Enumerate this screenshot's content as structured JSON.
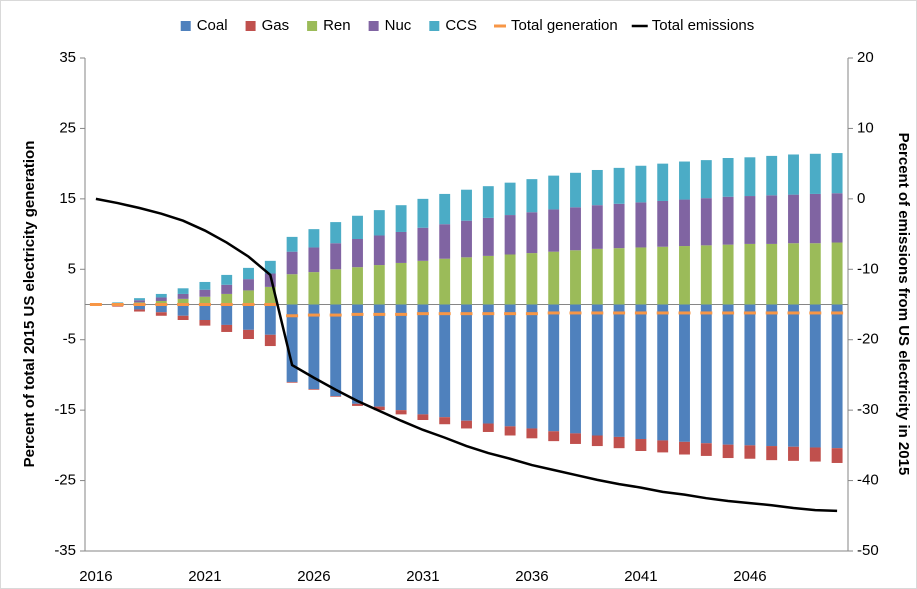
{
  "chart_data": {
    "type": "bar",
    "legend": "top",
    "y_label": "Percent of total 2015 US electricity generation",
    "y2_label": "Percent of emissions from US electricity in 2015",
    "categories": [
      "2016",
      null,
      null,
      null,
      null,
      "2021",
      null,
      null,
      null,
      null,
      "2026",
      null,
      null,
      null,
      null,
      "2031",
      null,
      null,
      null,
      null,
      "2036",
      null,
      null,
      null,
      null,
      "2041",
      null,
      null,
      null,
      null,
      "2046",
      null,
      null,
      null,
      null
    ],
    "ylim": [
      -35,
      35
    ],
    "yticks": [
      -35,
      -25,
      -15,
      -5,
      5,
      15,
      25,
      35
    ],
    "y2lim": [
      -50,
      20
    ],
    "y2ticks": [
      -50,
      -40,
      -30,
      -20,
      -10,
      0,
      10,
      20
    ],
    "series": [
      {
        "name": "Coal",
        "type": "bar",
        "color": "#4f81bd",
        "values": [
          0,
          -0.2,
          -0.7,
          -1.1,
          -1.6,
          -2.2,
          -2.9,
          -3.6,
          -4.3,
          -11.0,
          -12.0,
          -13.0,
          -14.1,
          -14.5,
          -15.0,
          -15.6,
          -16.0,
          -16.5,
          -16.9,
          -17.3,
          -17.6,
          -18.0,
          -18.3,
          -18.6,
          -18.8,
          -19.1,
          -19.3,
          -19.5,
          -19.7,
          -19.9,
          -20.0,
          -20.1,
          -20.2,
          -20.3,
          -20.4
        ]
      },
      {
        "name": "Gas",
        "type": "bar",
        "color": "#c0504d",
        "values": [
          0,
          -0.1,
          -0.3,
          -0.5,
          -0.6,
          -0.8,
          -1.0,
          -1.3,
          -1.6,
          -0.1,
          -0.1,
          -0.1,
          -0.3,
          -0.5,
          -0.6,
          -0.8,
          -1.0,
          -1.1,
          -1.2,
          -1.3,
          -1.4,
          -1.4,
          -1.5,
          -1.5,
          -1.6,
          -1.7,
          -1.7,
          -1.8,
          -1.8,
          -1.9,
          -1.9,
          -2.0,
          -2.0,
          -2.0,
          -2.1
        ]
      },
      {
        "name": "Ren",
        "type": "bar",
        "color": "#9bbb59",
        "values": [
          0,
          0.1,
          0.3,
          0.5,
          0.8,
          1.1,
          1.5,
          2.0,
          2.5,
          4.3,
          4.6,
          5.0,
          5.3,
          5.6,
          5.9,
          6.2,
          6.5,
          6.7,
          6.9,
          7.1,
          7.3,
          7.5,
          7.7,
          7.9,
          8.0,
          8.1,
          8.2,
          8.3,
          8.4,
          8.5,
          8.6,
          8.6,
          8.7,
          8.7,
          8.8
        ]
      },
      {
        "name": "Nuc",
        "type": "bar",
        "color": "#8064a2",
        "values": [
          0,
          0.1,
          0.3,
          0.5,
          0.7,
          1.0,
          1.3,
          1.6,
          1.9,
          3.2,
          3.5,
          3.7,
          4.0,
          4.2,
          4.4,
          4.7,
          4.9,
          5.2,
          5.4,
          5.6,
          5.8,
          6.0,
          6.1,
          6.2,
          6.3,
          6.4,
          6.5,
          6.6,
          6.7,
          6.8,
          6.8,
          6.9,
          6.9,
          7.0,
          7.0
        ]
      },
      {
        "name": "CCS",
        "type": "bar",
        "color": "#4bacc6",
        "values": [
          0,
          0.1,
          0.3,
          0.5,
          0.8,
          1.1,
          1.4,
          1.6,
          1.8,
          2.1,
          2.6,
          3.0,
          3.3,
          3.6,
          3.8,
          4.1,
          4.3,
          4.4,
          4.5,
          4.6,
          4.7,
          4.8,
          4.9,
          5.0,
          5.1,
          5.2,
          5.3,
          5.4,
          5.4,
          5.5,
          5.5,
          5.6,
          5.7,
          5.7,
          5.7
        ]
      },
      {
        "name": "Total generation",
        "type": "dash",
        "color": "#f79646",
        "values": [
          0,
          0,
          0,
          0,
          0,
          0,
          0,
          0,
          0,
          -1.6,
          -1.5,
          -1.5,
          -1.4,
          -1.4,
          -1.4,
          -1.3,
          -1.3,
          -1.3,
          -1.3,
          -1.3,
          -1.3,
          -1.2,
          -1.2,
          -1.2,
          -1.2,
          -1.2,
          -1.2,
          -1.2,
          -1.2,
          -1.2,
          -1.2,
          -1.2,
          -1.2,
          -1.2,
          -1.2
        ]
      },
      {
        "name": "Total emissions",
        "type": "line",
        "axis": "y2",
        "color": "#000000",
        "values": [
          0,
          -0.6,
          -1.3,
          -2.1,
          -3.1,
          -4.5,
          -6.2,
          -8.2,
          -10.8,
          -23.6,
          -25.4,
          -27.1,
          -28.7,
          -30.1,
          -31.5,
          -32.8,
          -33.9,
          -35.1,
          -36.1,
          -36.9,
          -37.8,
          -38.5,
          -39.2,
          -39.9,
          -40.5,
          -41.0,
          -41.6,
          -42.0,
          -42.5,
          -42.9,
          -43.2,
          -43.5,
          -43.9,
          -44.2,
          -44.3
        ]
      }
    ]
  }
}
